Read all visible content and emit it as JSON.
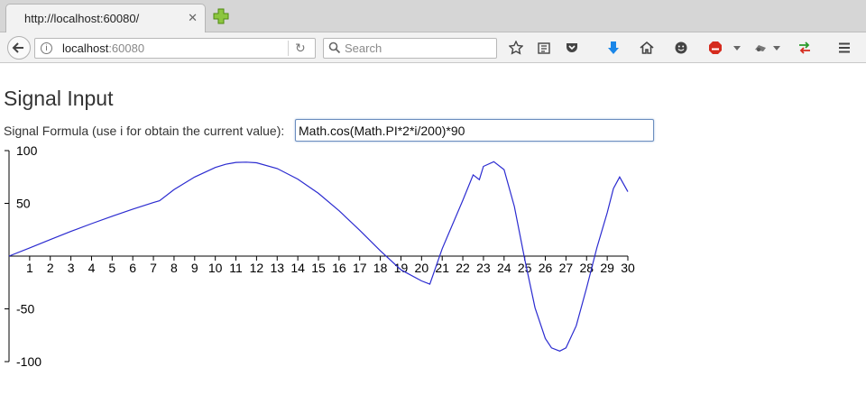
{
  "browser": {
    "tab_title": "http://localhost:60080/",
    "tab_close": "✕",
    "url_host": "localhost",
    "url_port": ":60080",
    "search_placeholder": "Search",
    "info_glyph": "i",
    "reload_glyph": "↻"
  },
  "page": {
    "heading": "Signal Input",
    "formula_label": "Signal Formula (use i for obtain the current value):",
    "formula_value": "Math.cos(Math.PI*2*i/200)*90"
  },
  "colors": {
    "line": "#2b2bd0",
    "axis": "#000000",
    "adblock": "#d52b1e",
    "download": "#1a86e8"
  },
  "chart_data": {
    "type": "line",
    "title": "",
    "xlabel": "",
    "ylabel": "",
    "xlim": [
      0,
      30
    ],
    "ylim": [
      -100,
      100
    ],
    "x_ticks": [
      "1",
      "2",
      "3",
      "4",
      "5",
      "6",
      "7",
      "8",
      "9",
      "10",
      "11",
      "12",
      "13",
      "14",
      "15",
      "16",
      "17",
      "18",
      "19",
      "20",
      "21",
      "22",
      "23",
      "24",
      "25",
      "26",
      "27",
      "28",
      "29",
      "30"
    ],
    "y_ticks": [
      {
        "value": 100,
        "label": "100"
      },
      {
        "value": 50,
        "label": "50"
      },
      {
        "value": -50,
        "label": "-50"
      },
      {
        "value": -100,
        "label": "-100"
      }
    ],
    "series": [
      {
        "x": [
          0,
          1,
          2,
          3,
          4,
          5,
          6,
          7,
          7.3,
          8,
          9,
          10,
          10.5,
          11,
          11.5,
          12,
          13,
          14,
          15,
          16,
          17,
          18,
          19,
          20,
          20.4,
          21,
          22,
          22.5,
          22.8,
          23,
          23.5,
          24,
          24.5,
          25,
          25.5,
          26,
          26.3,
          26.7,
          27,
          27.5,
          28,
          28.5,
          29,
          29.3,
          29.6,
          30
        ],
        "y": [
          0,
          7.8,
          15.6,
          23.4,
          30.8,
          37.8,
          44.5,
          50.8,
          52.5,
          63,
          75,
          84,
          87,
          88.8,
          89.1,
          88.5,
          83,
          73,
          59.5,
          43,
          24.5,
          5,
          -13,
          -23.5,
          -26.6,
          7,
          53,
          77,
          72.5,
          85,
          89.5,
          82,
          47,
          -3,
          -49,
          -78,
          -87,
          -90,
          -87,
          -66,
          -30,
          8,
          41,
          64,
          75,
          61
        ]
      }
    ]
  }
}
